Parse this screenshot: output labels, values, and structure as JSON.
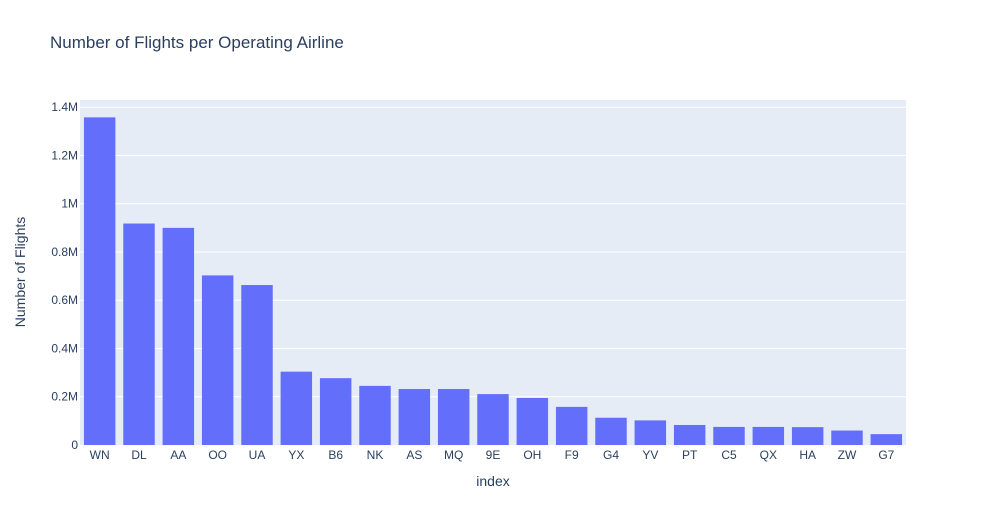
{
  "chart_data": {
    "type": "bar",
    "title": "Number of Flights per Operating Airline",
    "xlabel": "index",
    "ylabel": "Number of Flights",
    "categories": [
      "WN",
      "DL",
      "AA",
      "OO",
      "UA",
      "YX",
      "B6",
      "NK",
      "AS",
      "MQ",
      "9E",
      "OH",
      "F9",
      "G4",
      "YV",
      "PT",
      "C5",
      "QX",
      "HA",
      "ZW",
      "G7"
    ],
    "values": [
      1358000,
      918000,
      900000,
      703000,
      663000,
      304000,
      277000,
      245000,
      232000,
      232000,
      211000,
      195000,
      158000,
      113000,
      102000,
      83000,
      75000,
      75000,
      74000,
      60000,
      45000
    ],
    "ylim": [
      0,
      1430000
    ],
    "yticks": [
      0,
      200000,
      400000,
      600000,
      800000,
      1000000,
      1200000,
      1400000
    ],
    "ytick_labels": [
      "0",
      "0.2M",
      "0.4M",
      "0.6M",
      "0.8M",
      "1M",
      "1.2M",
      "1.4M"
    ],
    "grid": true,
    "colors": {
      "bar": "#636efa",
      "plot_bg": "#e5ecf6",
      "grid": "#ffffff",
      "text": "#2a3f5f"
    }
  }
}
